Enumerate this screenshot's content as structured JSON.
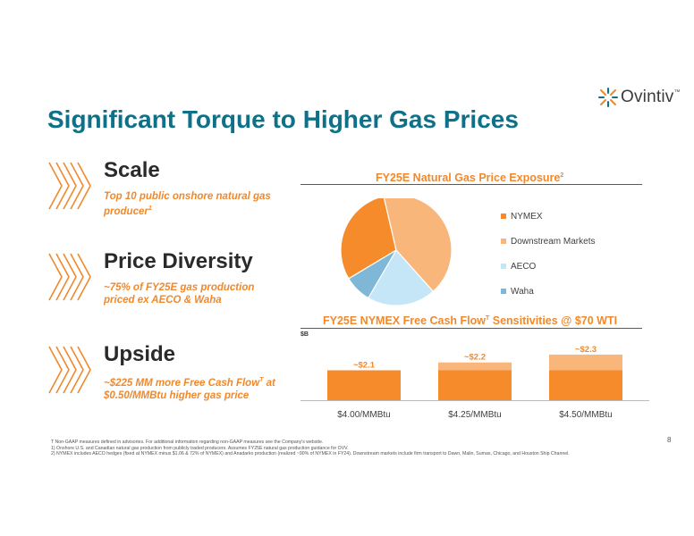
{
  "logo": {
    "text": "Ovintiv",
    "tm": "™"
  },
  "title": "Significant Torque to Higher Gas Prices",
  "pillars": [
    {
      "heading": "Scale",
      "subtitle": "Top 10 public onshore natural gas producer",
      "sup": "1"
    },
    {
      "heading": "Price Diversity",
      "subtitle": "~75% of FY25E gas production priced ex AECO & Waha",
      "sup": ""
    },
    {
      "heading": "Upside",
      "subtitle": "~$225 MM more Free Cash Flow",
      "sup": "T",
      "subtitle2": " at $0.50/MMBtu higher gas price"
    }
  ],
  "pie_title": "FY25E Natural Gas Price Exposure",
  "pie_title_sup": "2",
  "bar_title": "FY25E NYMEX Free Cash Flow",
  "bar_title_sup": "T",
  "bar_title_rest": " Sensitivities @ $70 WTI",
  "bar_unit": "$B",
  "colors": {
    "accent": "#f0892c",
    "title": "#0e7189",
    "nymex": "#f68b2c",
    "downstream": "#f9b67a",
    "aeco": "#c5e6f7",
    "waha": "#7eb8d6"
  },
  "chart_data": [
    {
      "type": "pie",
      "title": "FY25E Natural Gas Price Exposure",
      "labels": [
        "NYMEX",
        "Downstream Markets",
        "AECO",
        "Waha"
      ],
      "values": [
        30,
        42,
        20,
        8
      ],
      "legend": "right"
    },
    {
      "type": "bar",
      "title": "FY25E NYMEX Free Cash Flow Sensitivities @ $70 WTI",
      "ylabel": "$B",
      "categories": [
        "$4.00/MMBtu",
        "$4.25/MMBtu",
        "$4.50/MMBtu"
      ],
      "values": [
        2.1,
        2.2,
        2.3
      ],
      "base": 2.1,
      "data_labels": [
        "~$2.1",
        "~$2.2",
        "~$2.3"
      ],
      "ylim": [
        0,
        2.6
      ]
    }
  ],
  "footnotes": [
    "T Non-GAAP measures defined in advisories. For additional information regarding non-GAAP measures see the Company's website.",
    "1) Onshore U.S. and Canadian natural gas production from publicly traded producers. Assumes FY25E natural gas production guidance for OVV.",
    "2) NYMEX includes AECO hedges (fixed at NYMEX minus $1.06 & 72% of NYMEX) and Anadarko production (realized ~90% of NYMEX in FY24). Downstream markets include firm transport to Dawn, Malin, Sumas, Chicago, and Houston Ship Channel."
  ],
  "page_number": "8"
}
